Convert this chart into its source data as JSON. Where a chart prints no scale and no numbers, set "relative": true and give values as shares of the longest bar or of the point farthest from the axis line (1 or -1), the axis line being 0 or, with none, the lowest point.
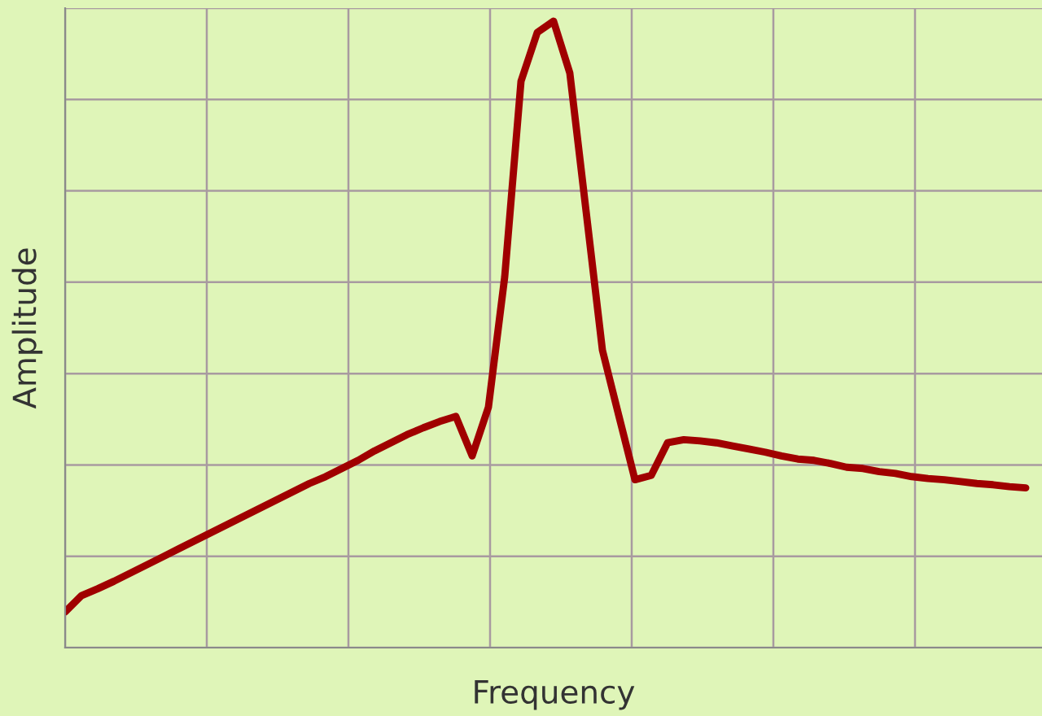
{
  "chart_data": {
    "type": "line",
    "xlabel": "Frequency",
    "ylabel": "Amplitude",
    "relative": true,
    "grid": true,
    "tick_labels": false,
    "legend": false,
    "categories": [
      null,
      null,
      null,
      null,
      null,
      null,
      null,
      null,
      null,
      null,
      null,
      null,
      null,
      null,
      null,
      null,
      null,
      null,
      null,
      null,
      null,
      null,
      null,
      null,
      null,
      null,
      null,
      null,
      null,
      null,
      null,
      null,
      null,
      null,
      null,
      null,
      null,
      null,
      null,
      null,
      null,
      null,
      null,
      null,
      null,
      null,
      null,
      null,
      null,
      null,
      null,
      null,
      null,
      null,
      null,
      null,
      null,
      null,
      null,
      null
    ],
    "series": [
      {
        "color": "#a00000",
        "values": [
          0.057,
          0.083,
          0.094,
          0.106,
          0.119,
          0.132,
          0.145,
          0.158,
          0.171,
          0.184,
          0.197,
          0.21,
          0.223,
          0.236,
          0.249,
          0.262,
          0.273,
          0.286,
          0.299,
          0.314,
          0.327,
          0.34,
          0.351,
          0.361,
          0.369,
          0.306,
          0.384,
          0.592,
          0.904,
          0.982,
          1.0,
          0.917,
          0.696,
          0.475,
          0.371,
          0.268,
          0.275,
          0.327,
          0.332,
          0.33,
          0.327,
          0.322,
          0.317,
          0.312,
          0.306,
          0.301,
          0.299,
          0.294,
          0.288,
          0.286,
          0.281,
          0.278,
          0.273,
          0.27,
          0.268,
          0.265,
          0.262,
          0.26,
          0.257,
          0.255
        ]
      }
    ]
  }
}
